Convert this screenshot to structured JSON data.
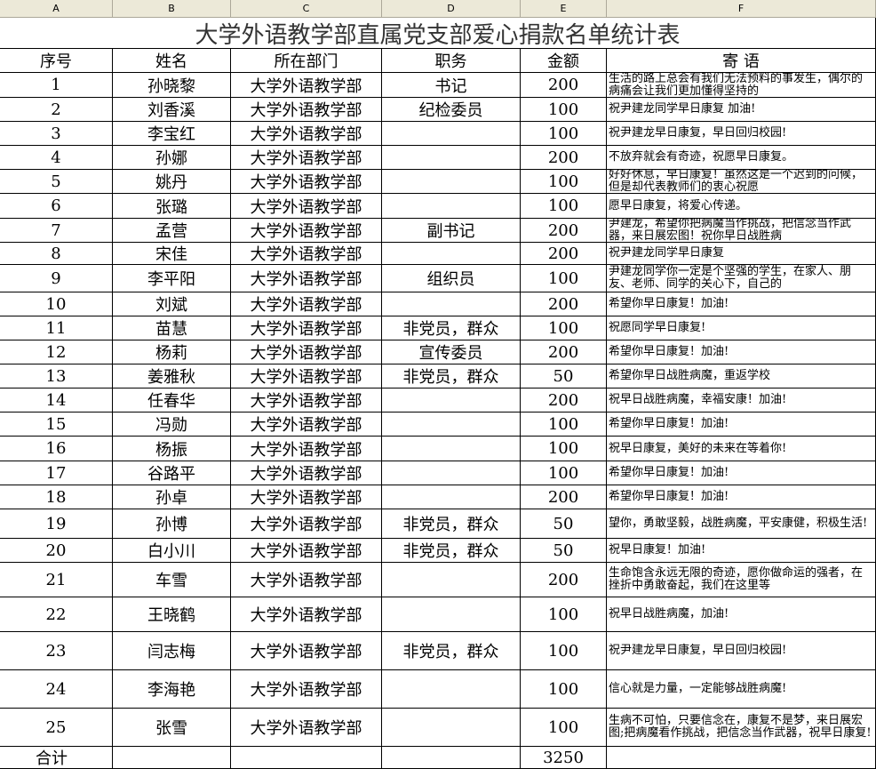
{
  "column_letters": [
    "A",
    "B",
    "C",
    "D",
    "E",
    "F"
  ],
  "title": "大学外语教学部直属党支部爱心捐款名单统计表",
  "table": {
    "header": [
      "序号",
      "姓名",
      "所在部门",
      "职务",
      "金额",
      "寄 语"
    ],
    "rows": [
      [
        1,
        "孙晓黎",
        "大学外语教学部",
        "书记",
        200,
        "生活的路上总会有我们无法预料的事发生，偶尔的病痛会让我们更加懂得坚持的"
      ],
      [
        2,
        "刘香溪",
        "大学外语教学部",
        "纪检委员",
        100,
        "祝尹建龙同学早日康复 加油!"
      ],
      [
        3,
        "李宝红",
        "大学外语教学部",
        null,
        100,
        "祝尹建龙早日康复，早日回归校园!"
      ],
      [
        4,
        "孙娜",
        "大学外语教学部",
        null,
        200,
        "不放弃就会有奇迹，祝愿早日康复。"
      ],
      [
        5,
        "姚丹",
        "大学外语教学部",
        null,
        100,
        "好好休息，早日康复！虽然这是一个迟到的问候，但是却代表教师们的衷心祝愿"
      ],
      [
        6,
        "张璐",
        "大学外语教学部",
        null,
        100,
        "愿早日康复，将爱心传递。"
      ],
      [
        7,
        "孟营",
        "大学外语教学部",
        "副书记",
        200,
        "尹建龙，希望你把病魔当作挑战，把信念当作武器，来日展宏图！祝你早日战胜病"
      ],
      [
        8,
        "宋佳",
        "大学外语教学部",
        null,
        200,
        "祝尹建龙同学早日康复"
      ],
      [
        9,
        "李平阳",
        "大学外语教学部",
        "组织员",
        100,
        "尹建龙同学你一定是个坚强的学生，在家人、朋友、老师、同学的关心下，自己的"
      ],
      [
        10,
        "刘斌",
        "大学外语教学部",
        null,
        200,
        "希望你早日康复！加油!"
      ],
      [
        11,
        "苗慧",
        "大学外语教学部",
        "非党员，群众",
        100,
        "祝愿同学早日康复!"
      ],
      [
        12,
        "杨莉",
        "大学外语教学部",
        "宣传委员",
        200,
        "希望你早日康复！加油!"
      ],
      [
        13,
        "姜雅秋",
        "大学外语教学部",
        "非党员，群众",
        50,
        "希望你早日战胜病魔，重返学校"
      ],
      [
        14,
        "任春华",
        "大学外语教学部",
        null,
        200,
        "祝早日战胜病魔，幸福安康！加油!"
      ],
      [
        15,
        "冯勋",
        "大学外语教学部",
        null,
        100,
        "希望你早日康复！加油!"
      ],
      [
        16,
        "杨振",
        "大学外语教学部",
        null,
        100,
        "祝早日康复，美好的未来在等着你!"
      ],
      [
        17,
        "谷路平",
        "大学外语教学部",
        null,
        100,
        "希望你早日康复！加油!"
      ],
      [
        18,
        "孙卓",
        "大学外语教学部",
        null,
        200,
        "希望你早日康复！加油!"
      ],
      [
        19,
        "孙博",
        "大学外语教学部",
        "非党员，群众",
        50,
        "望你，勇敢坚毅，战胜病魔，平安康健，积极生活!"
      ],
      [
        20,
        "白小川",
        "大学外语教学部",
        "非党员，群众",
        50,
        "祝早日康复！加油!"
      ],
      [
        21,
        "车雪",
        "大学外语教学部",
        null,
        200,
        "生命饱含永远无限的奇迹，愿你做命运的强者，在挫折中勇敢奋起，我们在这里等"
      ],
      [
        22,
        "王晓鹤",
        "大学外语教学部",
        null,
        100,
        "祝早日战胜病魔，加油!"
      ],
      [
        23,
        "闫志梅",
        "大学外语教学部",
        "非党员，群众",
        100,
        "祝尹建龙早日康复，早日回归校园!"
      ],
      [
        24,
        "李海艳",
        "大学外语教学部",
        null,
        100,
        "信心就是力量，一定能够战胜病魔!"
      ],
      [
        25,
        "张雪",
        "大学外语教学部",
        null,
        100,
        "生病不可怕，只要信念在，康复不是梦，来日展宏图;把病魔看作挑战，把信念当作武器，祝早日康复!"
      ]
    ]
  },
  "total": {
    "label": "合计",
    "amount": 3250
  }
}
